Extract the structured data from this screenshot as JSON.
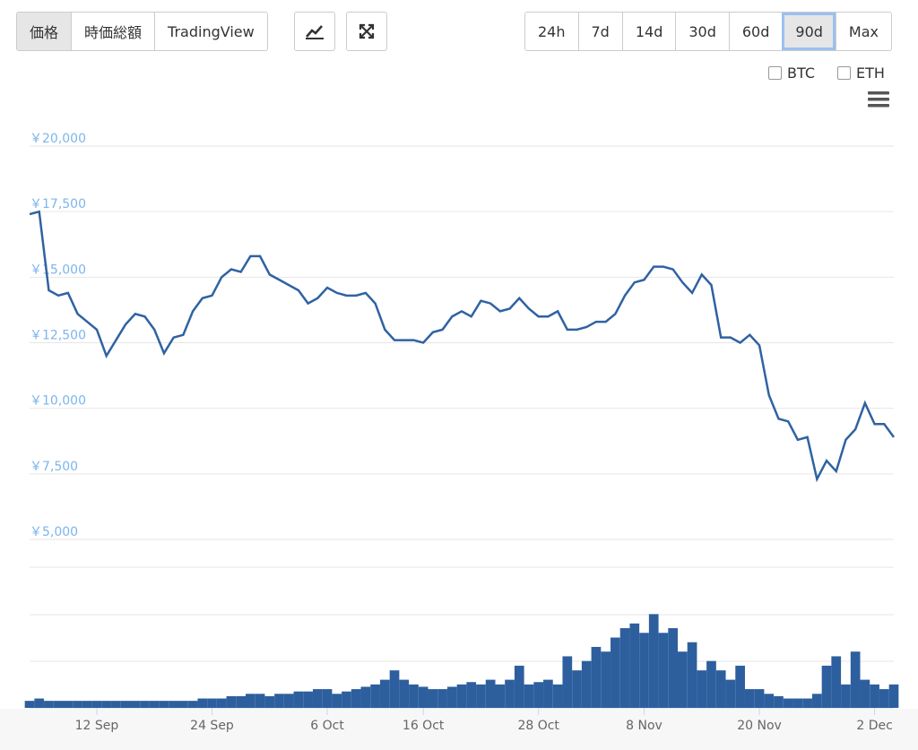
{
  "toolbar": {
    "views": [
      "価格",
      "時価総額",
      "TradingView"
    ],
    "ranges": [
      "24h",
      "7d",
      "14d",
      "30d",
      "60d",
      "90d",
      "Max"
    ],
    "selected_range": "90d",
    "compare": [
      "BTC",
      "ETH"
    ]
  },
  "chart_data": {
    "type": "line",
    "color": "#2f62a3",
    "volume_color": "#2d5f9e",
    "categories": [
      null,
      null,
      null,
      null,
      null,
      null,
      null,
      "12 Sep",
      null,
      null,
      null,
      null,
      null,
      null,
      null,
      null,
      null,
      null,
      null,
      "24 Sep",
      null,
      null,
      null,
      null,
      null,
      null,
      null,
      null,
      null,
      null,
      null,
      "6 Oct",
      null,
      null,
      null,
      null,
      null,
      null,
      null,
      null,
      null,
      "16 Oct",
      null,
      null,
      null,
      null,
      null,
      null,
      null,
      null,
      null,
      null,
      null,
      "28 Oct",
      null,
      null,
      null,
      null,
      null,
      null,
      null,
      null,
      null,
      null,
      "8 Nov",
      null,
      null,
      null,
      null,
      null,
      null,
      null,
      null,
      null,
      null,
      null,
      "20 Nov",
      null,
      null,
      null,
      null,
      null,
      null,
      null,
      null,
      null,
      null,
      null,
      "2 Dec",
      null,
      null
    ],
    "series": [
      {
        "name": "価格",
        "values": [
          17400,
          17500,
          14500,
          14300,
          14400,
          13600,
          13300,
          13000,
          12000,
          12600,
          13200,
          13600,
          13500,
          13000,
          12100,
          12700,
          12800,
          13700,
          14200,
          14300,
          15000,
          15300,
          15200,
          15800,
          15800,
          15100,
          14900,
          14700,
          14500,
          14000,
          14200,
          14600,
          14400,
          14300,
          14300,
          14400,
          14000,
          13000,
          12600,
          12600,
          12600,
          12500,
          12900,
          13000,
          13500,
          13700,
          13500,
          14100,
          14000,
          13700,
          13800,
          14200,
          13800,
          13500,
          13500,
          13700,
          13000,
          13000,
          13100,
          13300,
          13300,
          13600,
          14300,
          14800,
          14900,
          15400,
          15400,
          15300,
          14800,
          14400,
          15100,
          14700,
          12700,
          12700,
          12500,
          12800,
          12400,
          10500,
          9600,
          9500,
          8800,
          8900,
          7300,
          8000,
          7600,
          8800,
          9200,
          10200,
          9400,
          9400,
          8900
        ]
      }
    ],
    "volume": {
      "values": [
        0.15,
        0.2,
        0.15,
        0.15,
        0.15,
        0.15,
        0.15,
        0.15,
        0.15,
        0.15,
        0.15,
        0.15,
        0.15,
        0.15,
        0.15,
        0.15,
        0.15,
        0.15,
        0.2,
        0.2,
        0.2,
        0.25,
        0.25,
        0.3,
        0.3,
        0.25,
        0.3,
        0.3,
        0.35,
        0.35,
        0.4,
        0.4,
        0.3,
        0.35,
        0.4,
        0.45,
        0.5,
        0.6,
        0.8,
        0.6,
        0.5,
        0.45,
        0.4,
        0.4,
        0.45,
        0.5,
        0.55,
        0.5,
        0.6,
        0.5,
        0.6,
        0.9,
        0.5,
        0.55,
        0.6,
        0.5,
        1.1,
        0.8,
        1.0,
        1.3,
        1.2,
        1.5,
        1.7,
        1.8,
        1.6,
        2.0,
        1.6,
        1.7,
        1.2,
        1.4,
        0.8,
        1.0,
        0.8,
        0.6,
        0.9,
        0.4,
        0.4,
        0.3,
        0.25,
        0.2,
        0.2,
        0.2,
        0.3,
        0.9,
        1.1,
        0.5,
        1.2,
        0.6,
        0.5,
        0.4,
        0.5
      ],
      "ylim": [
        0,
        3
      ]
    },
    "ylim": [
      5000,
      20000
    ],
    "yticks": [
      {
        "value": 5000,
        "label": "￥5,000"
      },
      {
        "value": 7500,
        "label": "￥7,500"
      },
      {
        "value": 10000,
        "label": "￥10,000"
      },
      {
        "value": 12500,
        "label": "￥12,500"
      },
      {
        "value": 15000,
        "label": "￥15,000"
      },
      {
        "value": 17500,
        "label": "￥17,500"
      },
      {
        "value": 20000,
        "label": "￥20,000"
      }
    ],
    "grid": true
  }
}
